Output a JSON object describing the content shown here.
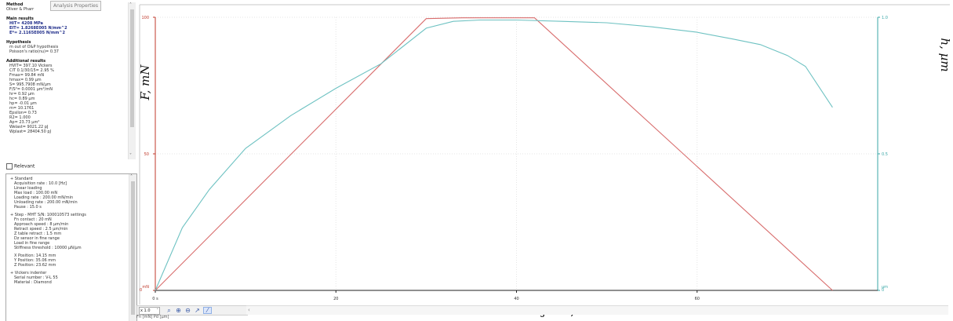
{
  "tooltip": "Analysis Properties",
  "results": {
    "method": {
      "title": "Method",
      "value": "Oliver & Pharr"
    },
    "main": {
      "title": "Main results",
      "lines": [
        "HIT= 4208  MPa",
        "EIT= 1.8268E005  N/mm^2",
        "E*= 2.1165E005  N/mm^2"
      ]
    },
    "hypothesis": {
      "title": "Hypothesis",
      "lines": [
        "m out of O&P hypothesis",
        "Poisson's ratio(nu)= 0.37"
      ]
    },
    "additional": {
      "title": "Additional results",
      "lines": [
        "HVIT= 397.10  Vickers",
        "CIT 0.1/30/15= 2.95 %",
        "Fmax= 99.84  mN",
        "hmax= 0.99  µm",
        "S= 995.7908  mN/µm",
        "F/S²= 0.0001  µm²/mN",
        "hr= 0.92  µm",
        "hc= 0.89  µm",
        "hp= -0.01  µm",
        "m= 10.1761",
        "Epsilon= 0.73",
        "R2= 1.000",
        "Ap= 23.73  µm²",
        "Welast= 9021.22 pJ",
        "Wplast= 28404.50 pJ"
      ]
    }
  },
  "relevant_label": "Relevant",
  "properties": [
    {
      "header": "+ Standard",
      "lines": [
        "Acquisition rate : 10.0 [Hz]",
        "Linear loading",
        "Max load : 100.00  mN",
        "Loading rate : 200.00  mN/min",
        "Unloading rate : 200.00  mN/min",
        "Pause : 15.0 s"
      ]
    },
    {
      "header": "+ Step - MHT S/N: 100010573 settings",
      "lines": [
        "Fn contact : 20 mN",
        "Approach speed : 8 µm/min",
        "Retract speed : 2.5 µm/min",
        "Z table retract : 1.5 mm",
        "Dz sensor in fine range",
        "Load in fine range",
        "Stiffness threshold : 10000 µN/µm"
      ]
    },
    {
      "header": "",
      "lines": [
        "X Position: 14.15 mm",
        "Y Position: 35.06 mm",
        "Z Position: 23.62 mm"
      ]
    },
    {
      "header": "+ Vickers indenter",
      "lines": [
        "Serial number : V-L 55",
        "Material : Diamond"
      ]
    }
  ],
  "toolbar": {
    "zoom": "x 1.0"
  },
  "status": "Fn   [mN]                                                       Pd  [µm]",
  "chart_data": {
    "type": "line",
    "xlabel": "Vrijeme, s",
    "ylabel_left": "F, mN",
    "ylabel_right": "h, µm",
    "xlim": [
      0,
      80
    ],
    "ylim_left": [
      0,
      100
    ],
    "ylim_right": [
      0,
      1.0
    ],
    "x_ticks": [
      "0 s",
      "20",
      "40",
      "60"
    ],
    "y_left_ticks": [
      "mN",
      "50",
      "100"
    ],
    "y_right_ticks": [
      "µm",
      "0.5",
      "1.0"
    ],
    "grid": true,
    "series": [
      {
        "color": "#d86c6c",
        "axis": "left",
        "x": [
          0,
          30,
          34,
          40,
          42,
          75
        ],
        "y": [
          0,
          99.5,
          99.8,
          99.8,
          99.8,
          0
        ]
      },
      {
        "color": "#6ec2c2",
        "axis": "right",
        "x": [
          0,
          3,
          6,
          10,
          15,
          20,
          25,
          30,
          33,
          36,
          40,
          45,
          50,
          55,
          60,
          64,
          67,
          70,
          72,
          75
        ],
        "y": [
          0,
          0.23,
          0.37,
          0.52,
          0.64,
          0.74,
          0.83,
          0.96,
          0.985,
          0.99,
          0.99,
          0.985,
          0.98,
          0.965,
          0.945,
          0.92,
          0.9,
          0.86,
          0.82,
          0.67
        ]
      }
    ]
  }
}
